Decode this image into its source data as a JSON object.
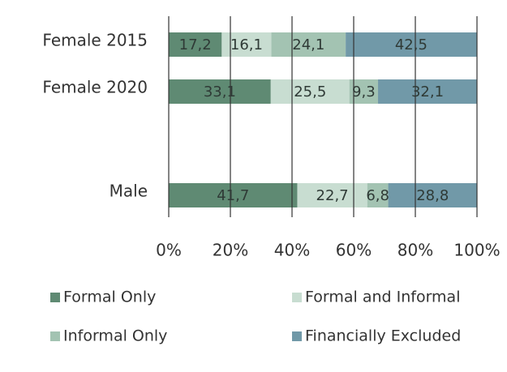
{
  "chart_data": {
    "type": "stacked-bar-horizontal",
    "categories": [
      "Female 2015",
      "Female 2020",
      "Male"
    ],
    "series": [
      {
        "name": "Formal Only",
        "color": "#5f8a73",
        "values": [
          17.2,
          33.1,
          41.7
        ],
        "value_labels": [
          "17,2",
          "33,1",
          "41,7"
        ]
      },
      {
        "name": "Formal and Informal",
        "color": "#c8ddd1",
        "values": [
          16.1,
          25.5,
          22.7
        ],
        "value_labels": [
          "16,1",
          "25,5",
          "22,7"
        ]
      },
      {
        "name": "Informal Only",
        "color": "#a3c3b2",
        "values": [
          24.1,
          9.3,
          6.8
        ],
        "value_labels": [
          "24,1",
          "9,3",
          "6,8"
        ]
      },
      {
        "name": "Financially Excluded",
        "color": "#7199a8",
        "values": [
          42.5,
          32.1,
          28.8
        ],
        "value_labels": [
          "42,5",
          "32,1",
          "28,8"
        ]
      }
    ],
    "xlim": [
      0,
      100
    ],
    "xticks": [
      {
        "value": 0,
        "label": "0%"
      },
      {
        "value": 20,
        "label": "20%"
      },
      {
        "value": 40,
        "label": "40%"
      },
      {
        "value": 60,
        "label": "60%"
      },
      {
        "value": 80,
        "label": "80%"
      },
      {
        "value": 100,
        "label": "100%"
      }
    ],
    "grid": true
  }
}
